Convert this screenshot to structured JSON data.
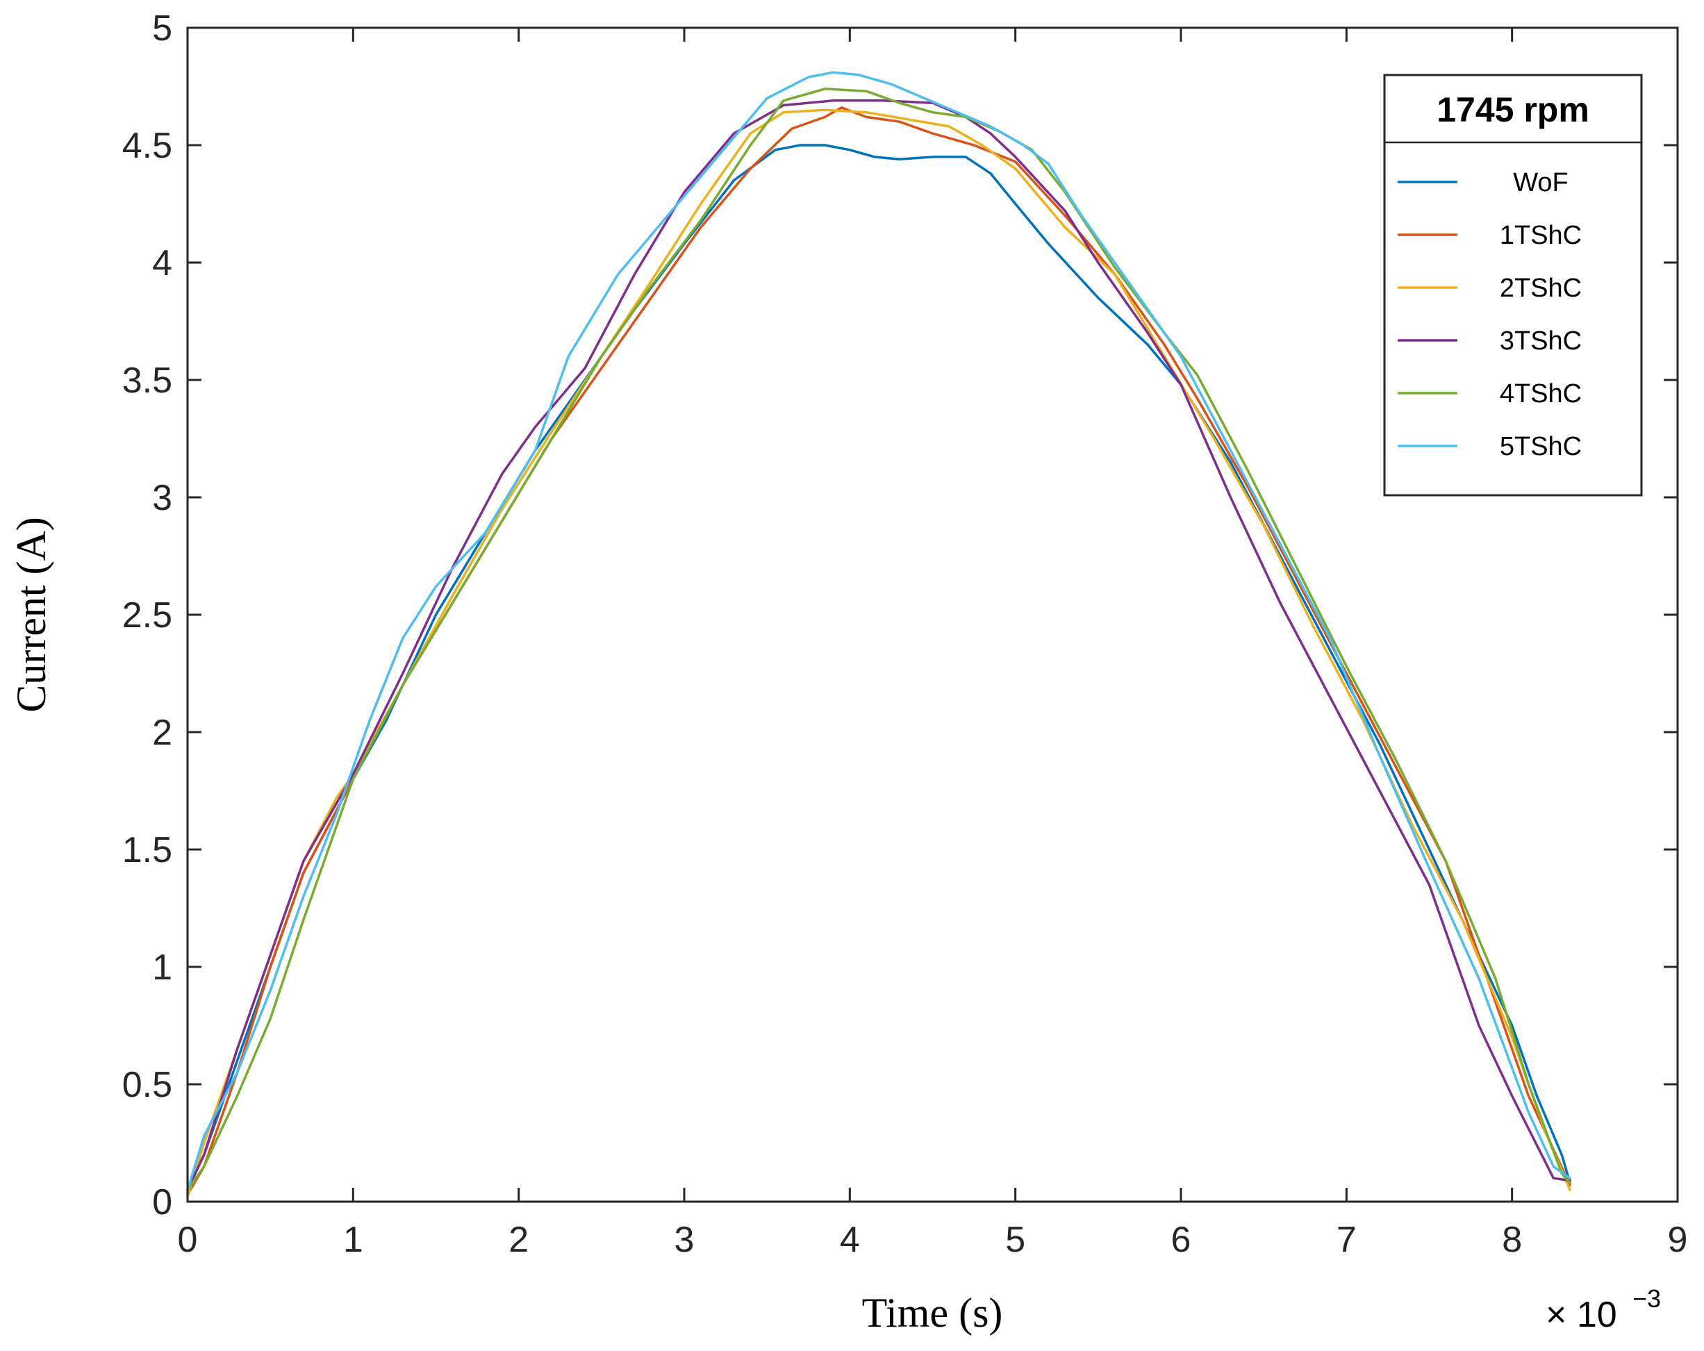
{
  "chart_data": {
    "type": "line",
    "xlabel": "Time (s)",
    "ylabel": "Current (A)",
    "x_exponent_label": "× 10",
    "x_exponent_power": "−3",
    "xlim": [
      0,
      9
    ],
    "ylim": [
      0,
      5
    ],
    "x_ticks": [
      "0",
      "1",
      "2",
      "3",
      "4",
      "5",
      "6",
      "7",
      "8",
      "9"
    ],
    "y_ticks": [
      "0",
      "0.5",
      "1",
      "1.5",
      "2",
      "2.5",
      "3",
      "3.5",
      "4",
      "4.5",
      "5"
    ],
    "grid": false,
    "legend": {
      "title": "1745 rpm",
      "position": "top-right"
    },
    "series": [
      {
        "name": "WoF",
        "color": "#0072BD",
        "points": [
          [
            0,
            0.05
          ],
          [
            0.1,
            0.2
          ],
          [
            0.3,
            0.6
          ],
          [
            0.5,
            1.0
          ],
          [
            0.7,
            1.4
          ],
          [
            1.0,
            1.8
          ],
          [
            1.2,
            2.05
          ],
          [
            1.5,
            2.5
          ],
          [
            1.8,
            2.85
          ],
          [
            2.1,
            3.2
          ],
          [
            2.4,
            3.5
          ],
          [
            2.7,
            3.8
          ],
          [
            3.0,
            4.08
          ],
          [
            3.3,
            4.35
          ],
          [
            3.55,
            4.48
          ],
          [
            3.7,
            4.5
          ],
          [
            3.85,
            4.5
          ],
          [
            4.0,
            4.48
          ],
          [
            4.15,
            4.45
          ],
          [
            4.3,
            4.44
          ],
          [
            4.5,
            4.45
          ],
          [
            4.7,
            4.45
          ],
          [
            4.85,
            4.38
          ],
          [
            5.0,
            4.25
          ],
          [
            5.2,
            4.08
          ],
          [
            5.5,
            3.85
          ],
          [
            5.8,
            3.65
          ],
          [
            6.0,
            3.48
          ],
          [
            6.3,
            3.15
          ],
          [
            6.6,
            2.75
          ],
          [
            6.9,
            2.35
          ],
          [
            7.2,
            1.95
          ],
          [
            7.5,
            1.5
          ],
          [
            7.8,
            1.05
          ],
          [
            8.0,
            0.75
          ],
          [
            8.15,
            0.45
          ],
          [
            8.3,
            0.2
          ],
          [
            8.35,
            0.08
          ]
        ]
      },
      {
        "name": "1TShC",
        "color": "#D95319",
        "points": [
          [
            0,
            0.03
          ],
          [
            0.1,
            0.15
          ],
          [
            0.3,
            0.55
          ],
          [
            0.5,
            1.0
          ],
          [
            0.7,
            1.4
          ],
          [
            1.0,
            1.8
          ],
          [
            1.3,
            2.2
          ],
          [
            1.6,
            2.55
          ],
          [
            1.9,
            2.9
          ],
          [
            2.2,
            3.25
          ],
          [
            2.5,
            3.55
          ],
          [
            2.8,
            3.85
          ],
          [
            3.1,
            4.15
          ],
          [
            3.4,
            4.4
          ],
          [
            3.65,
            4.57
          ],
          [
            3.85,
            4.62
          ],
          [
            3.95,
            4.66
          ],
          [
            4.1,
            4.62
          ],
          [
            4.3,
            4.6
          ],
          [
            4.5,
            4.55
          ],
          [
            4.75,
            4.5
          ],
          [
            5.0,
            4.43
          ],
          [
            5.3,
            4.2
          ],
          [
            5.6,
            3.95
          ],
          [
            5.9,
            3.65
          ],
          [
            6.1,
            3.42
          ],
          [
            6.4,
            3.05
          ],
          [
            6.7,
            2.65
          ],
          [
            7.0,
            2.25
          ],
          [
            7.3,
            1.85
          ],
          [
            7.6,
            1.45
          ],
          [
            7.9,
            0.85
          ],
          [
            8.1,
            0.45
          ],
          [
            8.35,
            0.07
          ]
        ]
      },
      {
        "name": "2TShC",
        "color": "#EDB120",
        "points": [
          [
            0,
            0.02
          ],
          [
            0.1,
            0.25
          ],
          [
            0.3,
            0.65
          ],
          [
            0.5,
            1.05
          ],
          [
            0.7,
            1.45
          ],
          [
            0.9,
            1.72
          ],
          [
            1.0,
            1.82
          ],
          [
            1.3,
            2.2
          ],
          [
            1.6,
            2.58
          ],
          [
            1.9,
            2.95
          ],
          [
            2.2,
            3.28
          ],
          [
            2.5,
            3.6
          ],
          [
            2.8,
            3.92
          ],
          [
            3.1,
            4.25
          ],
          [
            3.4,
            4.55
          ],
          [
            3.6,
            4.64
          ],
          [
            3.85,
            4.65
          ],
          [
            4.1,
            4.64
          ],
          [
            4.35,
            4.61
          ],
          [
            4.6,
            4.58
          ],
          [
            4.8,
            4.5
          ],
          [
            5.0,
            4.4
          ],
          [
            5.3,
            4.15
          ],
          [
            5.6,
            3.95
          ],
          [
            5.9,
            3.6
          ],
          [
            6.2,
            3.25
          ],
          [
            6.5,
            2.88
          ],
          [
            6.8,
            2.45
          ],
          [
            7.1,
            2.05
          ],
          [
            7.4,
            1.6
          ],
          [
            7.7,
            1.2
          ],
          [
            8.0,
            0.7
          ],
          [
            8.2,
            0.3
          ],
          [
            8.35,
            0.05
          ]
        ]
      },
      {
        "name": "3TShC",
        "color": "#7E2F8E",
        "points": [
          [
            0,
            0.05
          ],
          [
            0.1,
            0.2
          ],
          [
            0.3,
            0.65
          ],
          [
            0.5,
            1.05
          ],
          [
            0.7,
            1.45
          ],
          [
            1.0,
            1.82
          ],
          [
            1.3,
            2.25
          ],
          [
            1.6,
            2.7
          ],
          [
            1.9,
            3.1
          ],
          [
            2.1,
            3.3
          ],
          [
            2.4,
            3.55
          ],
          [
            2.7,
            3.95
          ],
          [
            3.0,
            4.3
          ],
          [
            3.3,
            4.55
          ],
          [
            3.6,
            4.67
          ],
          [
            3.9,
            4.69
          ],
          [
            4.2,
            4.69
          ],
          [
            4.5,
            4.68
          ],
          [
            4.7,
            4.62
          ],
          [
            4.85,
            4.55
          ],
          [
            5.0,
            4.45
          ],
          [
            5.3,
            4.22
          ],
          [
            5.5,
            4.0
          ],
          [
            5.8,
            3.7
          ],
          [
            6.0,
            3.48
          ],
          [
            6.3,
            3.0
          ],
          [
            6.6,
            2.55
          ],
          [
            6.9,
            2.15
          ],
          [
            7.2,
            1.75
          ],
          [
            7.5,
            1.35
          ],
          [
            7.8,
            0.75
          ],
          [
            8.0,
            0.45
          ],
          [
            8.25,
            0.1
          ],
          [
            8.35,
            0.09
          ]
        ]
      },
      {
        "name": "4TShC",
        "color": "#77AC30",
        "points": [
          [
            0,
            0.05
          ],
          [
            0.1,
            0.15
          ],
          [
            0.3,
            0.45
          ],
          [
            0.5,
            0.78
          ],
          [
            0.7,
            1.2
          ],
          [
            0.9,
            1.6
          ],
          [
            1.0,
            1.8
          ],
          [
            1.3,
            2.2
          ],
          [
            1.6,
            2.55
          ],
          [
            1.9,
            2.9
          ],
          [
            2.2,
            3.25
          ],
          [
            2.5,
            3.6
          ],
          [
            2.8,
            3.9
          ],
          [
            3.1,
            4.18
          ],
          [
            3.4,
            4.5
          ],
          [
            3.6,
            4.69
          ],
          [
            3.85,
            4.74
          ],
          [
            4.1,
            4.73
          ],
          [
            4.3,
            4.68
          ],
          [
            4.5,
            4.64
          ],
          [
            4.7,
            4.62
          ],
          [
            4.9,
            4.56
          ],
          [
            5.1,
            4.48
          ],
          [
            5.3,
            4.3
          ],
          [
            5.6,
            3.98
          ],
          [
            5.9,
            3.7
          ],
          [
            6.1,
            3.52
          ],
          [
            6.4,
            3.12
          ],
          [
            6.7,
            2.7
          ],
          [
            7.0,
            2.28
          ],
          [
            7.3,
            1.88
          ],
          [
            7.6,
            1.45
          ],
          [
            7.9,
            0.95
          ],
          [
            8.1,
            0.5
          ],
          [
            8.3,
            0.12
          ],
          [
            8.35,
            0.08
          ]
        ]
      },
      {
        "name": "5TShC",
        "color": "#4DBEEE",
        "points": [
          [
            0,
            0.05
          ],
          [
            0.1,
            0.28
          ],
          [
            0.3,
            0.55
          ],
          [
            0.5,
            0.9
          ],
          [
            0.7,
            1.3
          ],
          [
            0.9,
            1.65
          ],
          [
            1.1,
            2.05
          ],
          [
            1.3,
            2.4
          ],
          [
            1.5,
            2.62
          ],
          [
            1.8,
            2.85
          ],
          [
            2.1,
            3.2
          ],
          [
            2.3,
            3.6
          ],
          [
            2.6,
            3.95
          ],
          [
            2.9,
            4.2
          ],
          [
            3.2,
            4.45
          ],
          [
            3.5,
            4.7
          ],
          [
            3.75,
            4.79
          ],
          [
            3.9,
            4.81
          ],
          [
            4.05,
            4.8
          ],
          [
            4.25,
            4.76
          ],
          [
            4.45,
            4.7
          ],
          [
            4.65,
            4.64
          ],
          [
            4.85,
            4.58
          ],
          [
            5.05,
            4.5
          ],
          [
            5.2,
            4.42
          ],
          [
            5.4,
            4.2
          ],
          [
            5.7,
            3.9
          ],
          [
            6.0,
            3.6
          ],
          [
            6.3,
            3.2
          ],
          [
            6.6,
            2.8
          ],
          [
            6.9,
            2.4
          ],
          [
            7.2,
            1.9
          ],
          [
            7.5,
            1.42
          ],
          [
            7.8,
            0.95
          ],
          [
            8.1,
            0.38
          ],
          [
            8.25,
            0.15
          ],
          [
            8.35,
            0.1
          ]
        ]
      }
    ]
  }
}
